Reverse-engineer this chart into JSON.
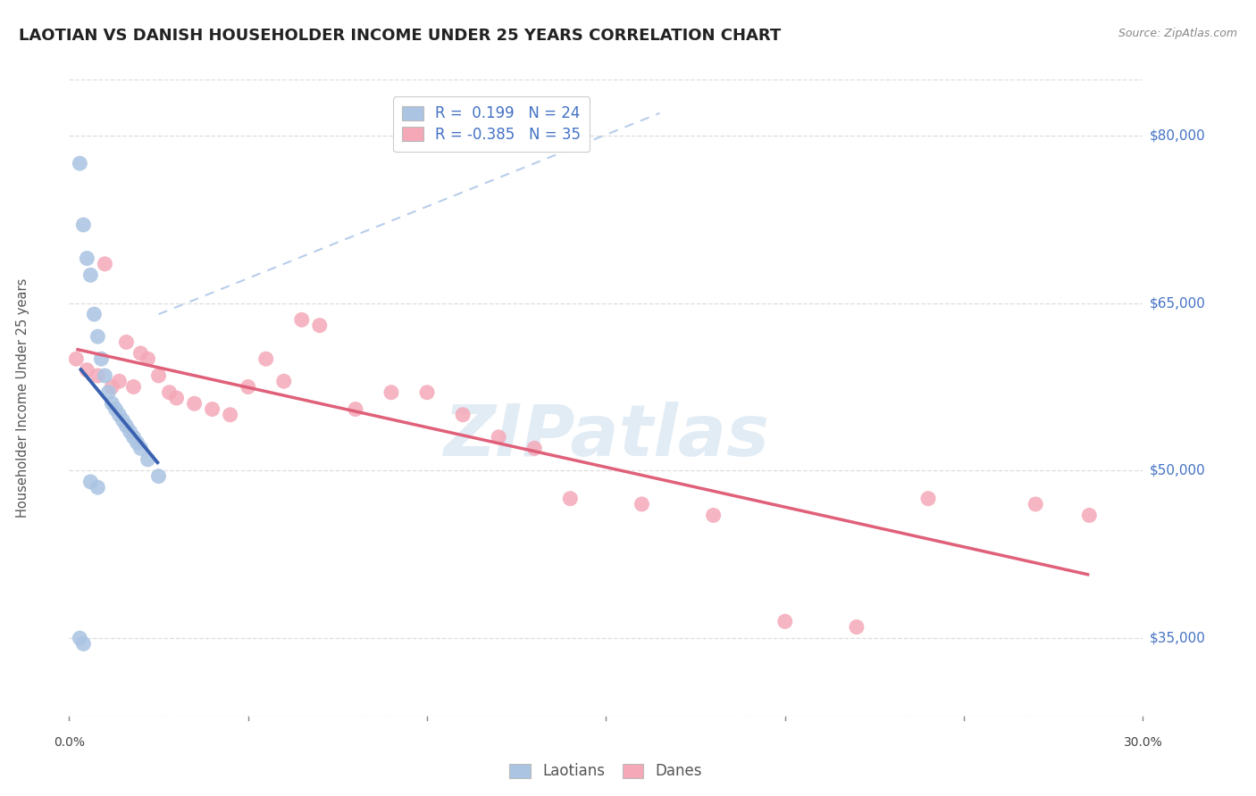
{
  "title": "LAOTIAN VS DANISH HOUSEHOLDER INCOME UNDER 25 YEARS CORRELATION CHART",
  "source": "Source: ZipAtlas.com",
  "ylabel": "Householder Income Under 25 years",
  "xmin": 0.0,
  "xmax": 0.3,
  "ymin": 28000,
  "ymax": 85000,
  "yticks": [
    35000,
    50000,
    65000,
    80000
  ],
  "ytick_labels": [
    "$35,000",
    "$50,000",
    "$65,000",
    "$80,000"
  ],
  "xtick_vals": [
    0.0,
    0.05,
    0.1,
    0.15,
    0.2,
    0.25,
    0.3
  ],
  "xtick_labels": [
    "0.0%",
    "",
    "",
    "",
    "",
    "",
    "30.0%"
  ],
  "background_color": "#ffffff",
  "grid_color": "#dddddd",
  "laotian_color": "#aac4e2",
  "danish_color": "#f4a8b8",
  "laotian_R": 0.199,
  "laotian_N": 24,
  "danish_R": -0.385,
  "danish_N": 35,
  "laotian_line_color": "#3a60b0",
  "danish_line_color": "#e0607a",
  "diag_line_color": "#b0c8e8",
  "watermark": "ZIPatlas",
  "laotian_x": [
    0.003,
    0.004,
    0.005,
    0.006,
    0.007,
    0.008,
    0.009,
    0.01,
    0.011,
    0.012,
    0.013,
    0.014,
    0.015,
    0.016,
    0.017,
    0.018,
    0.019,
    0.02,
    0.022,
    0.025,
    0.003,
    0.004,
    0.006,
    0.008
  ],
  "laotian_y": [
    77500,
    72000,
    69000,
    67500,
    64000,
    62000,
    60000,
    58500,
    57000,
    56000,
    55500,
    55000,
    54500,
    54000,
    53500,
    53000,
    52500,
    52000,
    51000,
    49500,
    35000,
    34500,
    49000,
    48500
  ],
  "danish_x": [
    0.002,
    0.005,
    0.008,
    0.01,
    0.012,
    0.014,
    0.016,
    0.018,
    0.02,
    0.022,
    0.025,
    0.028,
    0.03,
    0.035,
    0.04,
    0.045,
    0.05,
    0.055,
    0.06,
    0.065,
    0.07,
    0.08,
    0.09,
    0.1,
    0.11,
    0.12,
    0.13,
    0.14,
    0.16,
    0.18,
    0.2,
    0.22,
    0.24,
    0.27,
    0.285
  ],
  "danish_y": [
    60000,
    59000,
    58500,
    68500,
    57500,
    58000,
    61500,
    57500,
    60500,
    60000,
    58500,
    57000,
    56500,
    56000,
    55500,
    55000,
    57500,
    60000,
    58000,
    63500,
    63000,
    55500,
    57000,
    57000,
    55000,
    53000,
    52000,
    47500,
    47000,
    46000,
    36500,
    36000,
    47500,
    47000,
    46000
  ]
}
